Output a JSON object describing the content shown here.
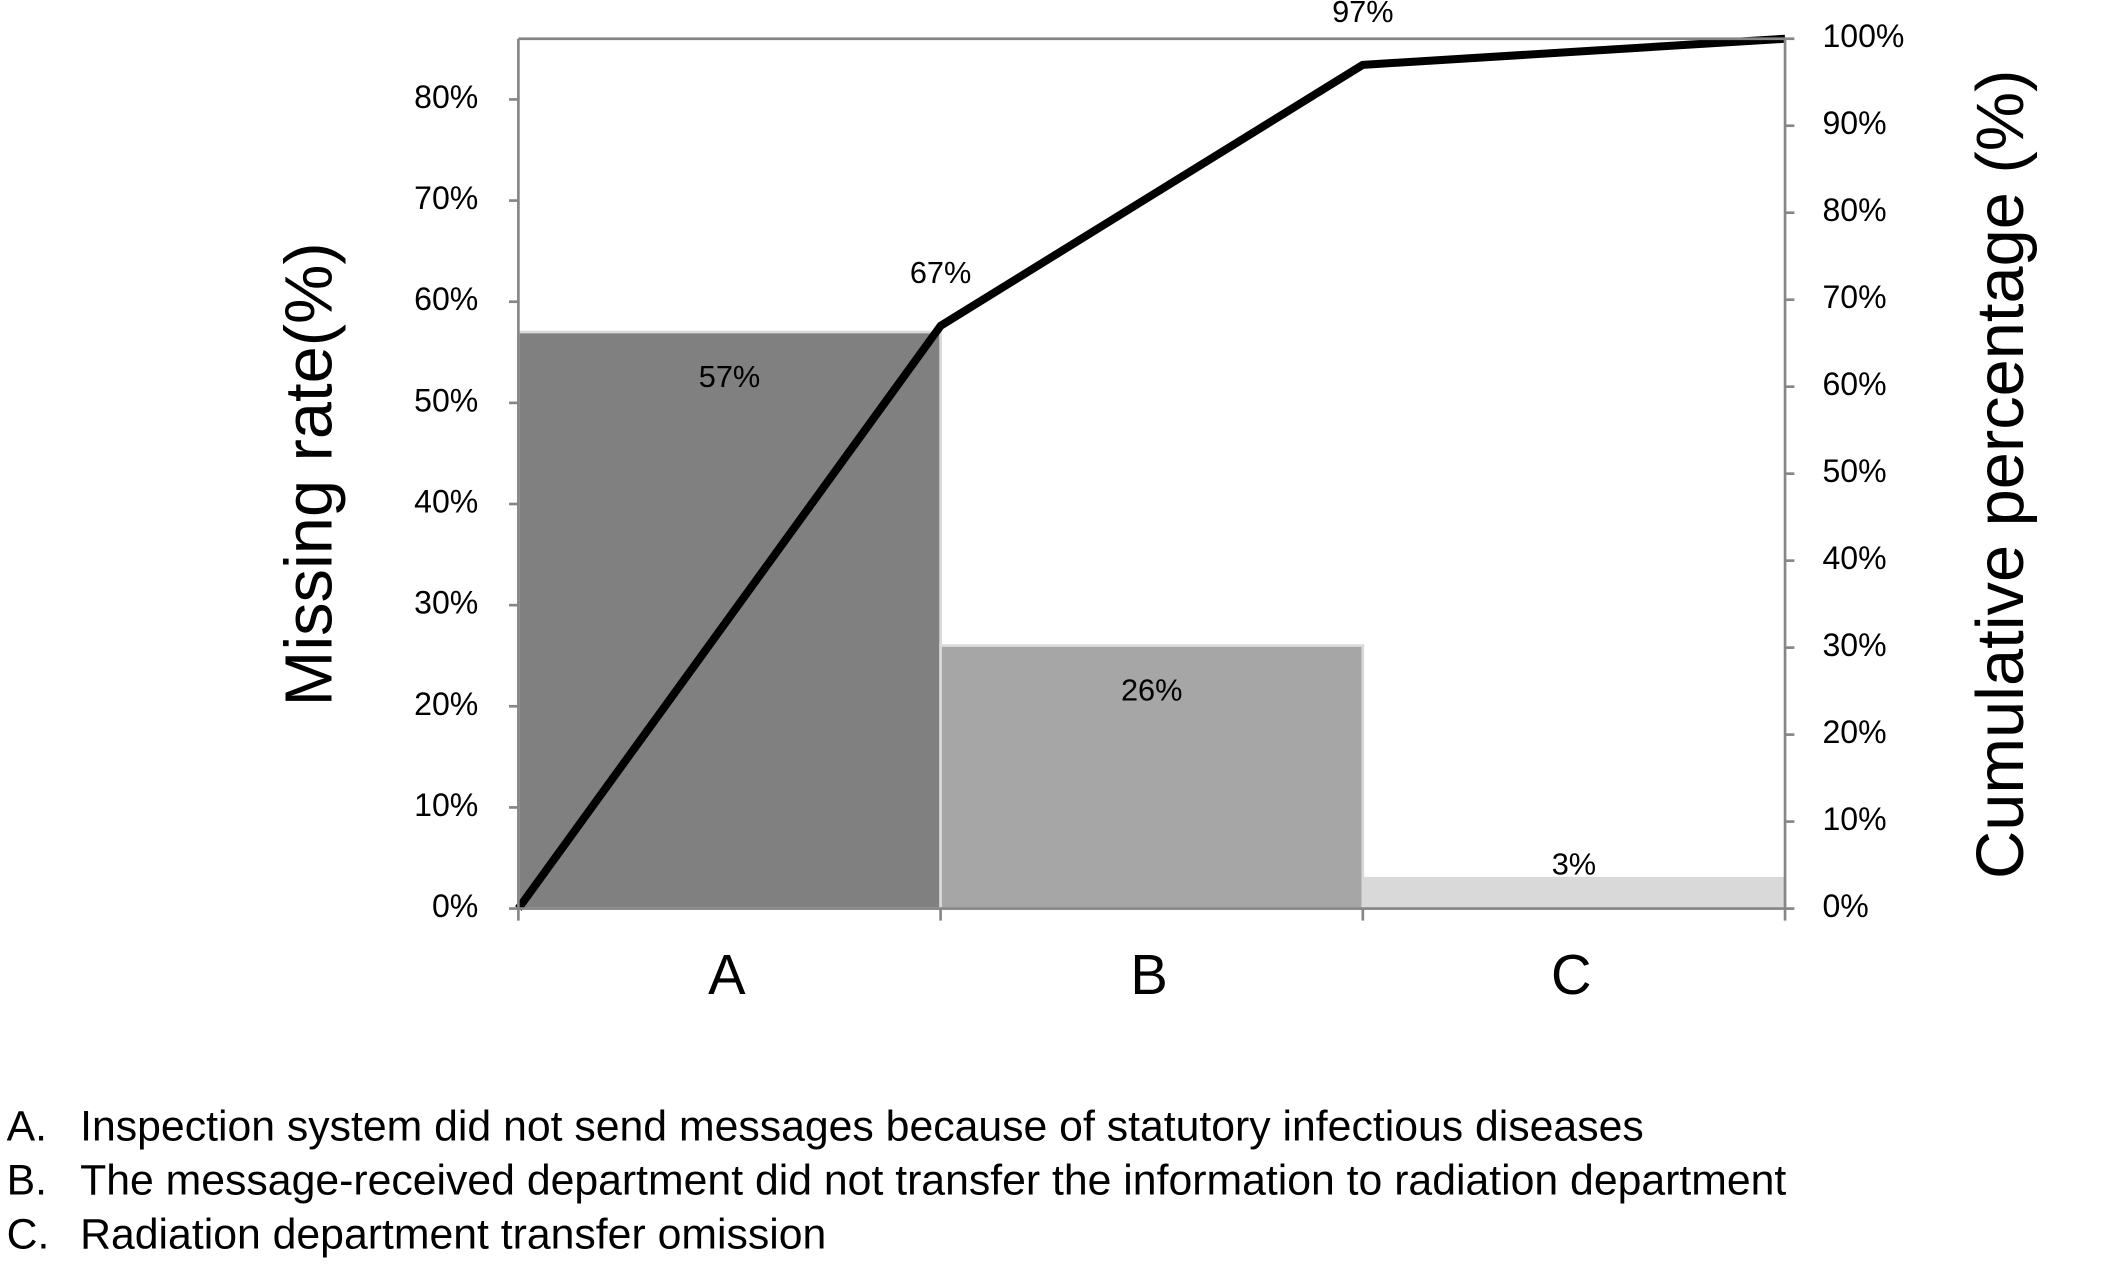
{
  "chart_data": {
    "type": "bar",
    "y_title": "Missing rate(%)",
    "y2_title": "Cumulative percentage (%)",
    "categories": [
      "A",
      "B",
      "C"
    ],
    "ylim": [
      0,
      86
    ],
    "yticks": [
      {
        "value": 0,
        "label": "0%"
      },
      {
        "value": 10,
        "label": "10%"
      },
      {
        "value": 20,
        "label": "20%"
      },
      {
        "value": 30,
        "label": "30%"
      },
      {
        "value": 40,
        "label": "40%"
      },
      {
        "value": 50,
        "label": "50%"
      },
      {
        "value": 60,
        "label": "60%"
      },
      {
        "value": 70,
        "label": "70%"
      },
      {
        "value": 80,
        "label": "80%"
      }
    ],
    "y2lim": [
      0,
      100
    ],
    "y2ticks": [
      {
        "value": 0,
        "label": "0%"
      },
      {
        "value": 10,
        "label": "10%"
      },
      {
        "value": 20,
        "label": "20%"
      },
      {
        "value": 30,
        "label": "30%"
      },
      {
        "value": 40,
        "label": "40%"
      },
      {
        "value": 50,
        "label": "50%"
      },
      {
        "value": 60,
        "label": "60%"
      },
      {
        "value": 70,
        "label": "70%"
      },
      {
        "value": 80,
        "label": "80%"
      },
      {
        "value": 90,
        "label": "90%"
      },
      {
        "value": 100,
        "label": "100%"
      }
    ],
    "series": [
      {
        "type": "bar",
        "colors": [
          "#808080",
          "#a6a6a6",
          "#d9d9d9"
        ],
        "values": [
          57,
          26,
          3
        ],
        "value_labels": [
          "57%",
          "26%",
          "3%"
        ]
      },
      {
        "type": "line",
        "axis": "y2",
        "color": "#000000",
        "x": [
          0,
          1,
          2,
          3
        ],
        "values": [
          0,
          67,
          97,
          100
        ],
        "value_labels": [
          null,
          "67%",
          "97%",
          null
        ]
      }
    ],
    "notes": [
      {
        "letter": "A.",
        "text": "Inspection system did not send messages because of statutory infectious diseases"
      },
      {
        "letter": "B.",
        "text": "The message-received department did not transfer the information to radiation department"
      },
      {
        "letter": "C.",
        "text": "Radiation department transfer omission"
      }
    ]
  }
}
